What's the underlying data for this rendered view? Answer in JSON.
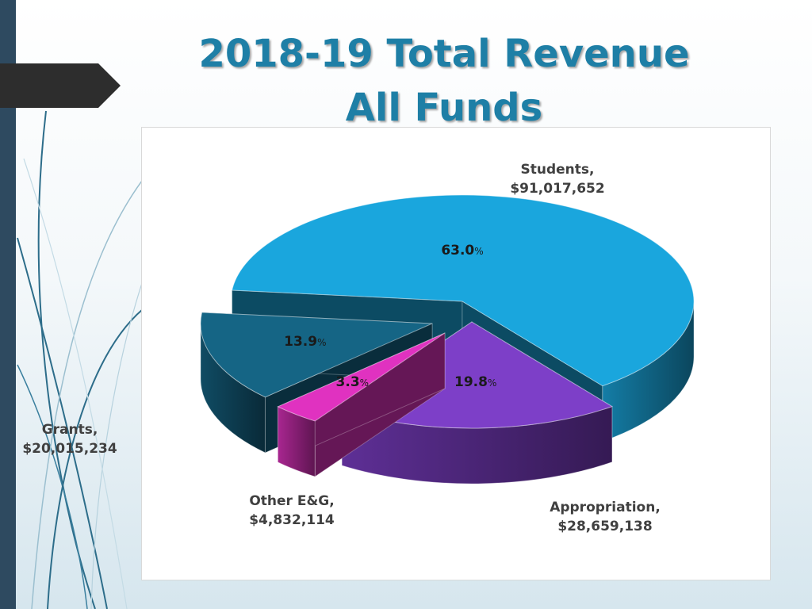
{
  "slide": {
    "title_line1": "2018-19 Total Revenue",
    "title_line2": "All Funds"
  },
  "chart_data": {
    "type": "pie",
    "style": "3d-exploded",
    "title": "2018-19 Total Revenue All Funds",
    "slices": [
      {
        "category": "Students,",
        "amount": "$91,017,652",
        "value": 91017652,
        "percent": 63.0,
        "percent_label": "63.0",
        "color": "#1aa6dd"
      },
      {
        "category": "Appropriation,",
        "amount": "$28,659,138",
        "value": 28659138,
        "percent": 19.8,
        "percent_label": "19.8",
        "color": "#7d3fc8"
      },
      {
        "category": "Other E&G,",
        "amount": "$4,832,114",
        "value": 4832114,
        "percent": 3.3,
        "percent_label": "3.3",
        "color": "#e032c0"
      },
      {
        "category": "Grants,",
        "amount": "$20,015,234",
        "value": 20015234,
        "percent": 13.9,
        "percent_label": "13.9",
        "color": "#156585"
      }
    ],
    "percent_sign": "%",
    "legend": "none"
  }
}
